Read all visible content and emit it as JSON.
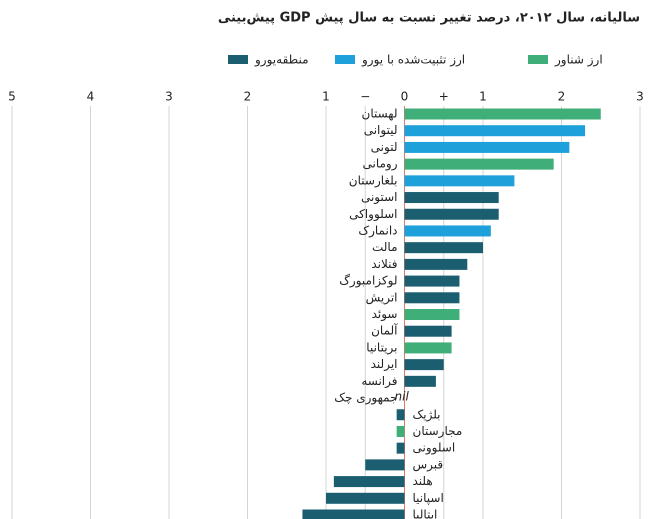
{
  "chart_data": {
    "type": "barh",
    "title": "پیش‌بینی GDP سالیانه، سال ۲۰۱۲، درصد تغییر نسبت به سال پیش",
    "legend": [
      {
        "name": "منطقه‌یورو",
        "color": "#1b5e70"
      },
      {
        "name": "ارز تثبیت‌شده با یورو",
        "color": "#1ea0da"
      },
      {
        "name": "ارز شناور",
        "color": "#3fae78"
      }
    ],
    "categories": [
      "لهستان",
      "لیتوانی",
      "لتونی",
      "رومانی",
      "بلغارستان",
      "استونی",
      "اسلوواکی",
      "دانمارک",
      "مالت",
      "فنلاند",
      "لوکزامبورگ",
      "اتریش",
      "سوئد",
      "آلمان",
      "بریتانیا",
      "ایرلند",
      "فرانسه",
      "جمهوری چک",
      "بلژیک",
      "مجارستان",
      "اسلوونی",
      "قبرس",
      "هلند",
      "اسپانیا",
      "ایتالیا"
    ],
    "values": [
      2.5,
      2.3,
      2.1,
      1.9,
      1.4,
      1.2,
      1.2,
      1.1,
      1.0,
      0.8,
      0.7,
      0.7,
      0.7,
      0.6,
      0.6,
      0.5,
      0.4,
      0,
      -0.1,
      -0.1,
      -0.1,
      -0.5,
      -0.9,
      -1.0,
      -1.3
    ],
    "value_labels": [
      null,
      null,
      null,
      null,
      null,
      null,
      null,
      null,
      null,
      null,
      null,
      null,
      null,
      null,
      null,
      null,
      null,
      "nil",
      null,
      null,
      null,
      null,
      null,
      null,
      null
    ],
    "colors": [
      "#3fae78",
      "#1ea0da",
      "#1ea0da",
      "#3fae78",
      "#1ea0da",
      "#1b5e70",
      "#1b5e70",
      "#1ea0da",
      "#1b5e70",
      "#1b5e70",
      "#1b5e70",
      "#1b5e70",
      "#3fae78",
      "#1b5e70",
      "#3fae78",
      "#1b5e70",
      "#1b5e70",
      "#1b5e70",
      "#1b5e70",
      "#3fae78",
      "#1b5e70",
      "#1b5e70",
      "#1b5e70",
      "#1b5e70",
      "#1b5e70"
    ],
    "xlim": [
      -5,
      3
    ],
    "xticks": [
      {
        "value": -5,
        "label": "5"
      },
      {
        "value": -4,
        "label": "4"
      },
      {
        "value": -3,
        "label": "3"
      },
      {
        "value": -2,
        "label": "2"
      },
      {
        "value": -1,
        "label": "1"
      },
      {
        "value": -0.5,
        "label": "−"
      },
      0,
      {
        "value": 0.5,
        "label": "+"
      },
      1,
      2,
      3
    ],
    "grid": true
  }
}
